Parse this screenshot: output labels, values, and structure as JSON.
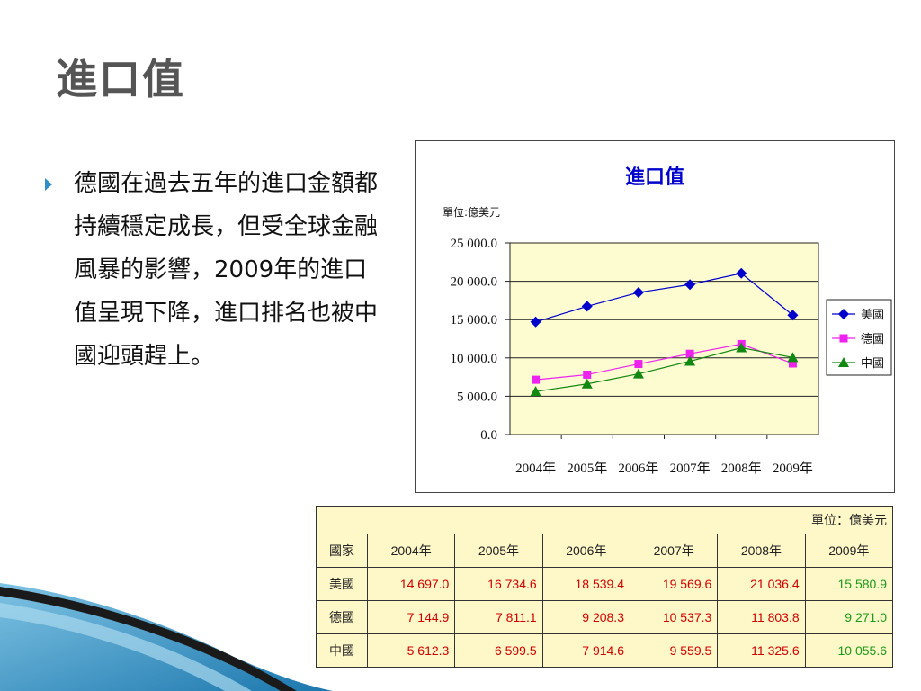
{
  "slide": {
    "title": "進口值",
    "bullet": "德國在過去五年的進口金額都持續穩定成長，但受全球金融風暴的影響，2009年的進口值呈現下降，進口排名也被中國迎頭趕上。"
  },
  "chart_data": {
    "type": "line",
    "title": "進口值",
    "unit_label": "單位:億美元",
    "categories": [
      "2004年",
      "2005年",
      "2006年",
      "2007年",
      "2008年",
      "2009年"
    ],
    "ylim": [
      0,
      25000
    ],
    "yticks": [
      0,
      5000,
      10000,
      15000,
      20000,
      25000
    ],
    "ytick_labels": [
      "0.0",
      "5 000.0",
      "10 000.0",
      "15 000.0",
      "20 000.0",
      "25 000.0"
    ],
    "grid": true,
    "legend_position": "right",
    "plot_background": "#fdfbd0",
    "series": [
      {
        "name": "美國",
        "color": "#0000cc",
        "marker": "diamond",
        "values": [
          14697.0,
          16734.6,
          18539.4,
          19569.6,
          21036.4,
          15580.9
        ]
      },
      {
        "name": "德國",
        "color": "#ee22ee",
        "marker": "square",
        "values": [
          7144.9,
          7811.1,
          9208.3,
          10537.3,
          11803.8,
          9271.0
        ]
      },
      {
        "name": "中國",
        "color": "#118811",
        "marker": "triangle",
        "values": [
          5612.3,
          6599.5,
          7914.6,
          9559.5,
          11325.6,
          10055.6
        ]
      }
    ]
  },
  "table": {
    "unit": "單位：億美元",
    "header": [
      "國家",
      "2004年",
      "2005年",
      "2006年",
      "2007年",
      "2008年",
      "2009年"
    ],
    "rows": [
      {
        "country": "美國",
        "values": [
          "14 697.0",
          "16 734.6",
          "18 539.4",
          "19 569.6",
          "21 036.4",
          "15 580.9"
        ]
      },
      {
        "country": "德國",
        "values": [
          "7 144.9",
          "7 811.1",
          "9 208.3",
          "10 537.3",
          "11 803.8",
          "9 271.0"
        ]
      },
      {
        "country": "中國",
        "values": [
          "5 612.3",
          "6 599.5",
          "7 914.6",
          "9 559.5",
          "11 325.6",
          "10 055.6"
        ]
      }
    ]
  }
}
